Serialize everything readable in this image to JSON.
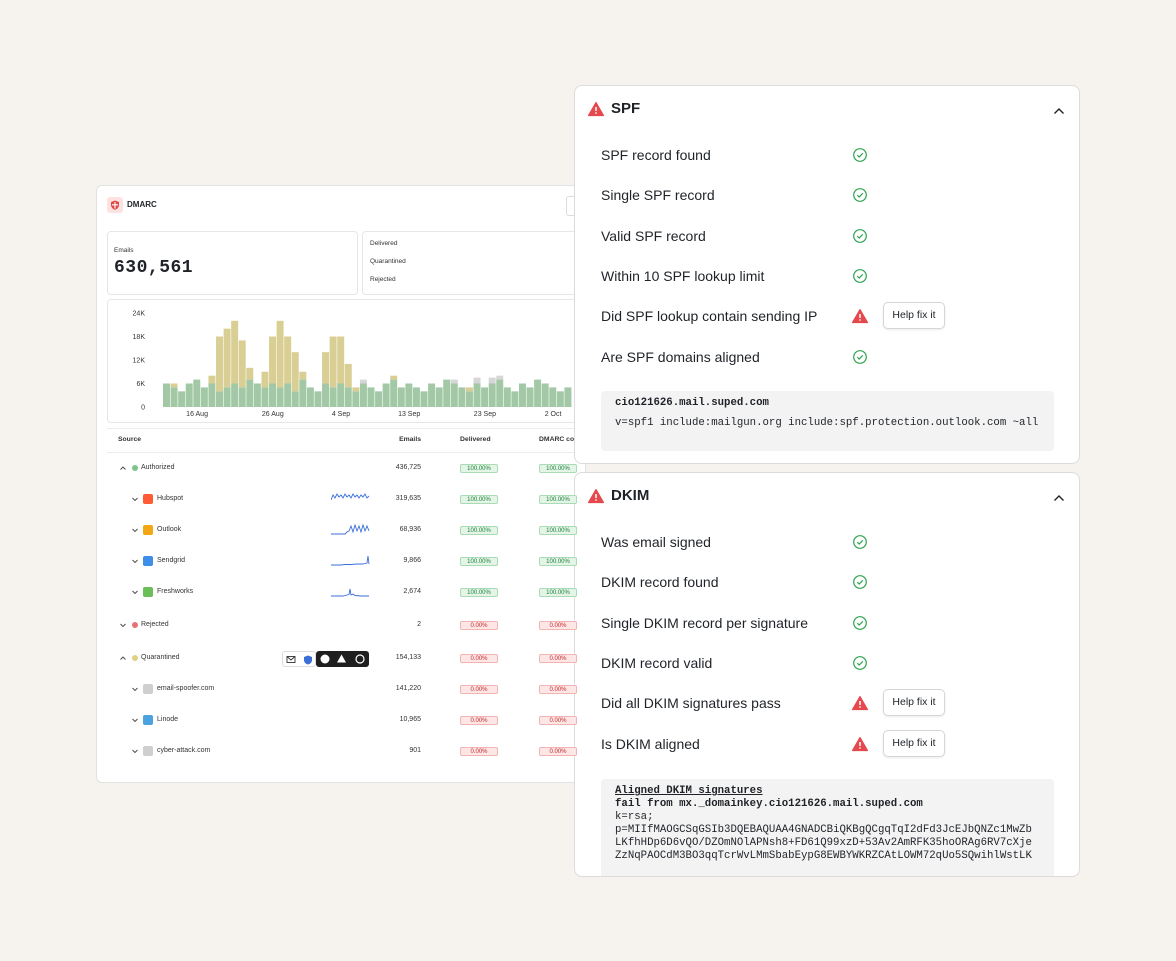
{
  "left_panel": {
    "title": "DMARC",
    "stats": {
      "emails_label": "Emails",
      "emails_total": "630,561",
      "breakdown": [
        "Delivered",
        "Quarantined",
        "Rejected"
      ]
    },
    "table": {
      "columns": [
        "Source",
        "Emails",
        "Delivered",
        "DMARC co"
      ],
      "rows": [
        {
          "source": "Authorized",
          "color": "#7cc48b",
          "emails": "436,725",
          "delivered": "100.00%",
          "dmarc": "100.00%",
          "children": [
            {
              "source": "Hubspot",
              "emails": "319,635",
              "delivered": "100.00%",
              "dmarc": "100.00%"
            },
            {
              "source": "Outlook",
              "emails": "68,936",
              "delivered": "100.00%",
              "dmarc": "100.00%"
            },
            {
              "source": "Sendgrid",
              "emails": "9,866",
              "delivered": "100.00%",
              "dmarc": "100.00%"
            },
            {
              "source": "Freshworks",
              "emails": "2,674",
              "delivered": "100.00%",
              "dmarc": "100.00%"
            }
          ]
        },
        {
          "source": "Rejected",
          "color": "#e57373",
          "emails": "2",
          "delivered": "0.00%",
          "dmarc": "0.00%",
          "children": []
        },
        {
          "source": "Quarantined",
          "color": "#e2cf86",
          "emails": "154,133",
          "delivered": "0.00%",
          "dmarc": "0.00%",
          "children": [
            {
              "source": "email-spoofer.com",
              "emails": "141,220",
              "delivered": "0.00%",
              "dmarc": "0.00%"
            },
            {
              "source": "Linode",
              "emails": "10,965",
              "delivered": "0.00%",
              "dmarc": "0.00%"
            },
            {
              "source": "cyber-attack.com",
              "emails": "901",
              "delivered": "0.00%",
              "dmarc": "0.00%"
            }
          ]
        }
      ]
    }
  },
  "chart_data": {
    "type": "bar",
    "stacked": true,
    "categories": [
      null,
      null,
      null,
      null,
      "16 Aug",
      null,
      null,
      null,
      null,
      null,
      null,
      null,
      null,
      null,
      "26 Aug",
      null,
      null,
      null,
      null,
      null,
      null,
      null,
      null,
      "4 Sep",
      null,
      null,
      null,
      null,
      null,
      null,
      null,
      null,
      "13 Sep",
      null,
      null,
      null,
      null,
      null,
      null,
      null,
      null,
      null,
      "23 Sep",
      null,
      null,
      null,
      null,
      null,
      null,
      null,
      null,
      "2 Oct",
      null,
      null
    ],
    "series": [
      {
        "name": "Delivered",
        "color": "#a2c8a6",
        "values": [
          6000,
          5000,
          4000,
          6000,
          7000,
          5000,
          6000,
          4000,
          5000,
          6000,
          5000,
          7000,
          6000,
          5000,
          6000,
          5000,
          6000,
          4000,
          7000,
          5000,
          4000,
          6000,
          5000,
          6000,
          5000,
          4000,
          6000,
          5000,
          4000,
          6000,
          7000,
          5000,
          6000,
          5000,
          4000,
          6000,
          5000,
          7000,
          6000,
          5000,
          4000,
          6000,
          5000,
          6000,
          7000,
          5000,
          4000,
          6000,
          5000,
          7000,
          6000,
          5000,
          4000,
          5000
        ]
      },
      {
        "name": "Quarantined",
        "color": "#d9cf94",
        "values": [
          0,
          1000,
          0,
          0,
          0,
          0,
          2000,
          14000,
          15000,
          16000,
          12000,
          3000,
          0,
          4000,
          12000,
          17000,
          12000,
          10000,
          2000,
          0,
          0,
          8000,
          13000,
          12000,
          6000,
          1000,
          0,
          0,
          0,
          0,
          1000,
          0,
          0,
          0,
          0,
          0,
          0,
          0,
          0,
          0,
          1000,
          0,
          0,
          0,
          0,
          0,
          0,
          0,
          0,
          0,
          0,
          0,
          0,
          0
        ]
      },
      {
        "name": "Rejected",
        "color": "#d6d6d6",
        "values": [
          0,
          0,
          0,
          0,
          0,
          0,
          0,
          0,
          0,
          0,
          0,
          0,
          0,
          0,
          0,
          0,
          0,
          0,
          0,
          0,
          0,
          0,
          0,
          0,
          0,
          0,
          1000,
          0,
          0,
          0,
          0,
          0,
          0,
          0,
          0,
          0,
          0,
          0,
          1000,
          0,
          0,
          1500,
          0,
          1500,
          1000,
          0,
          0,
          0,
          0,
          0,
          0,
          0,
          0,
          0
        ]
      }
    ],
    "ylim": [
      0,
      24000
    ],
    "yticks": [
      0,
      {
        "value": 6000,
        "label": "6K"
      },
      {
        "value": 12000,
        "label": "12K"
      },
      {
        "value": 18000,
        "label": "18K"
      },
      {
        "value": 24000,
        "label": "24K"
      }
    ],
    "grid": false
  },
  "checks": [
    {
      "title": "SPF",
      "items": [
        {
          "label": "SPF record found",
          "status": "pass"
        },
        {
          "label": "Single SPF record",
          "status": "pass"
        },
        {
          "label": "Valid SPF record",
          "status": "pass"
        },
        {
          "label": "Within 10 SPF lookup limit",
          "status": "pass"
        },
        {
          "label": "Did SPF lookup contain sending IP",
          "status": "warning",
          "action": "Help fix it"
        },
        {
          "label": "Are SPF domains aligned",
          "status": "pass"
        }
      ],
      "code": [
        "cio121626.mail.suped.com",
        "v=spf1 include:mailgun.org include:spf.protection.outlook.com ~all"
      ]
    },
    {
      "title": "DKIM",
      "items": [
        {
          "label": "Was email signed",
          "status": "pass"
        },
        {
          "label": "DKIM record found",
          "status": "pass"
        },
        {
          "label": "Single DKIM record per signature",
          "status": "pass"
        },
        {
          "label": "DKIM record valid",
          "status": "pass"
        },
        {
          "label": "Did all DKIM signatures pass",
          "status": "warning",
          "action": "Help fix it"
        },
        {
          "label": "Is DKIM aligned",
          "status": "warning",
          "action": "Help fix it"
        }
      ],
      "code_heading": "Aligned DKIM signatures",
      "code": [
        "fail from mx._domainkey.cio121626.mail.suped.com",
        "k=rsa;",
        "p=MIIfMAOGCSqGSIb3DQEBAQUAA4GNADCBiQKBgQCgqTqI2dFd3JcEJbQNZc1MwZb",
        "LKfhHDp6D6vQO/DZOmNOlAPNsh8+FD61Q99xzD+53Av2AmRFK35hoORAg6RV7cXje",
        "ZzNqPAOCdM3BO3qqTcrWvLMmSbabEypG8EWBYWKRZCAtLOWM72qUo5SQwihlWstLK"
      ]
    }
  ]
}
